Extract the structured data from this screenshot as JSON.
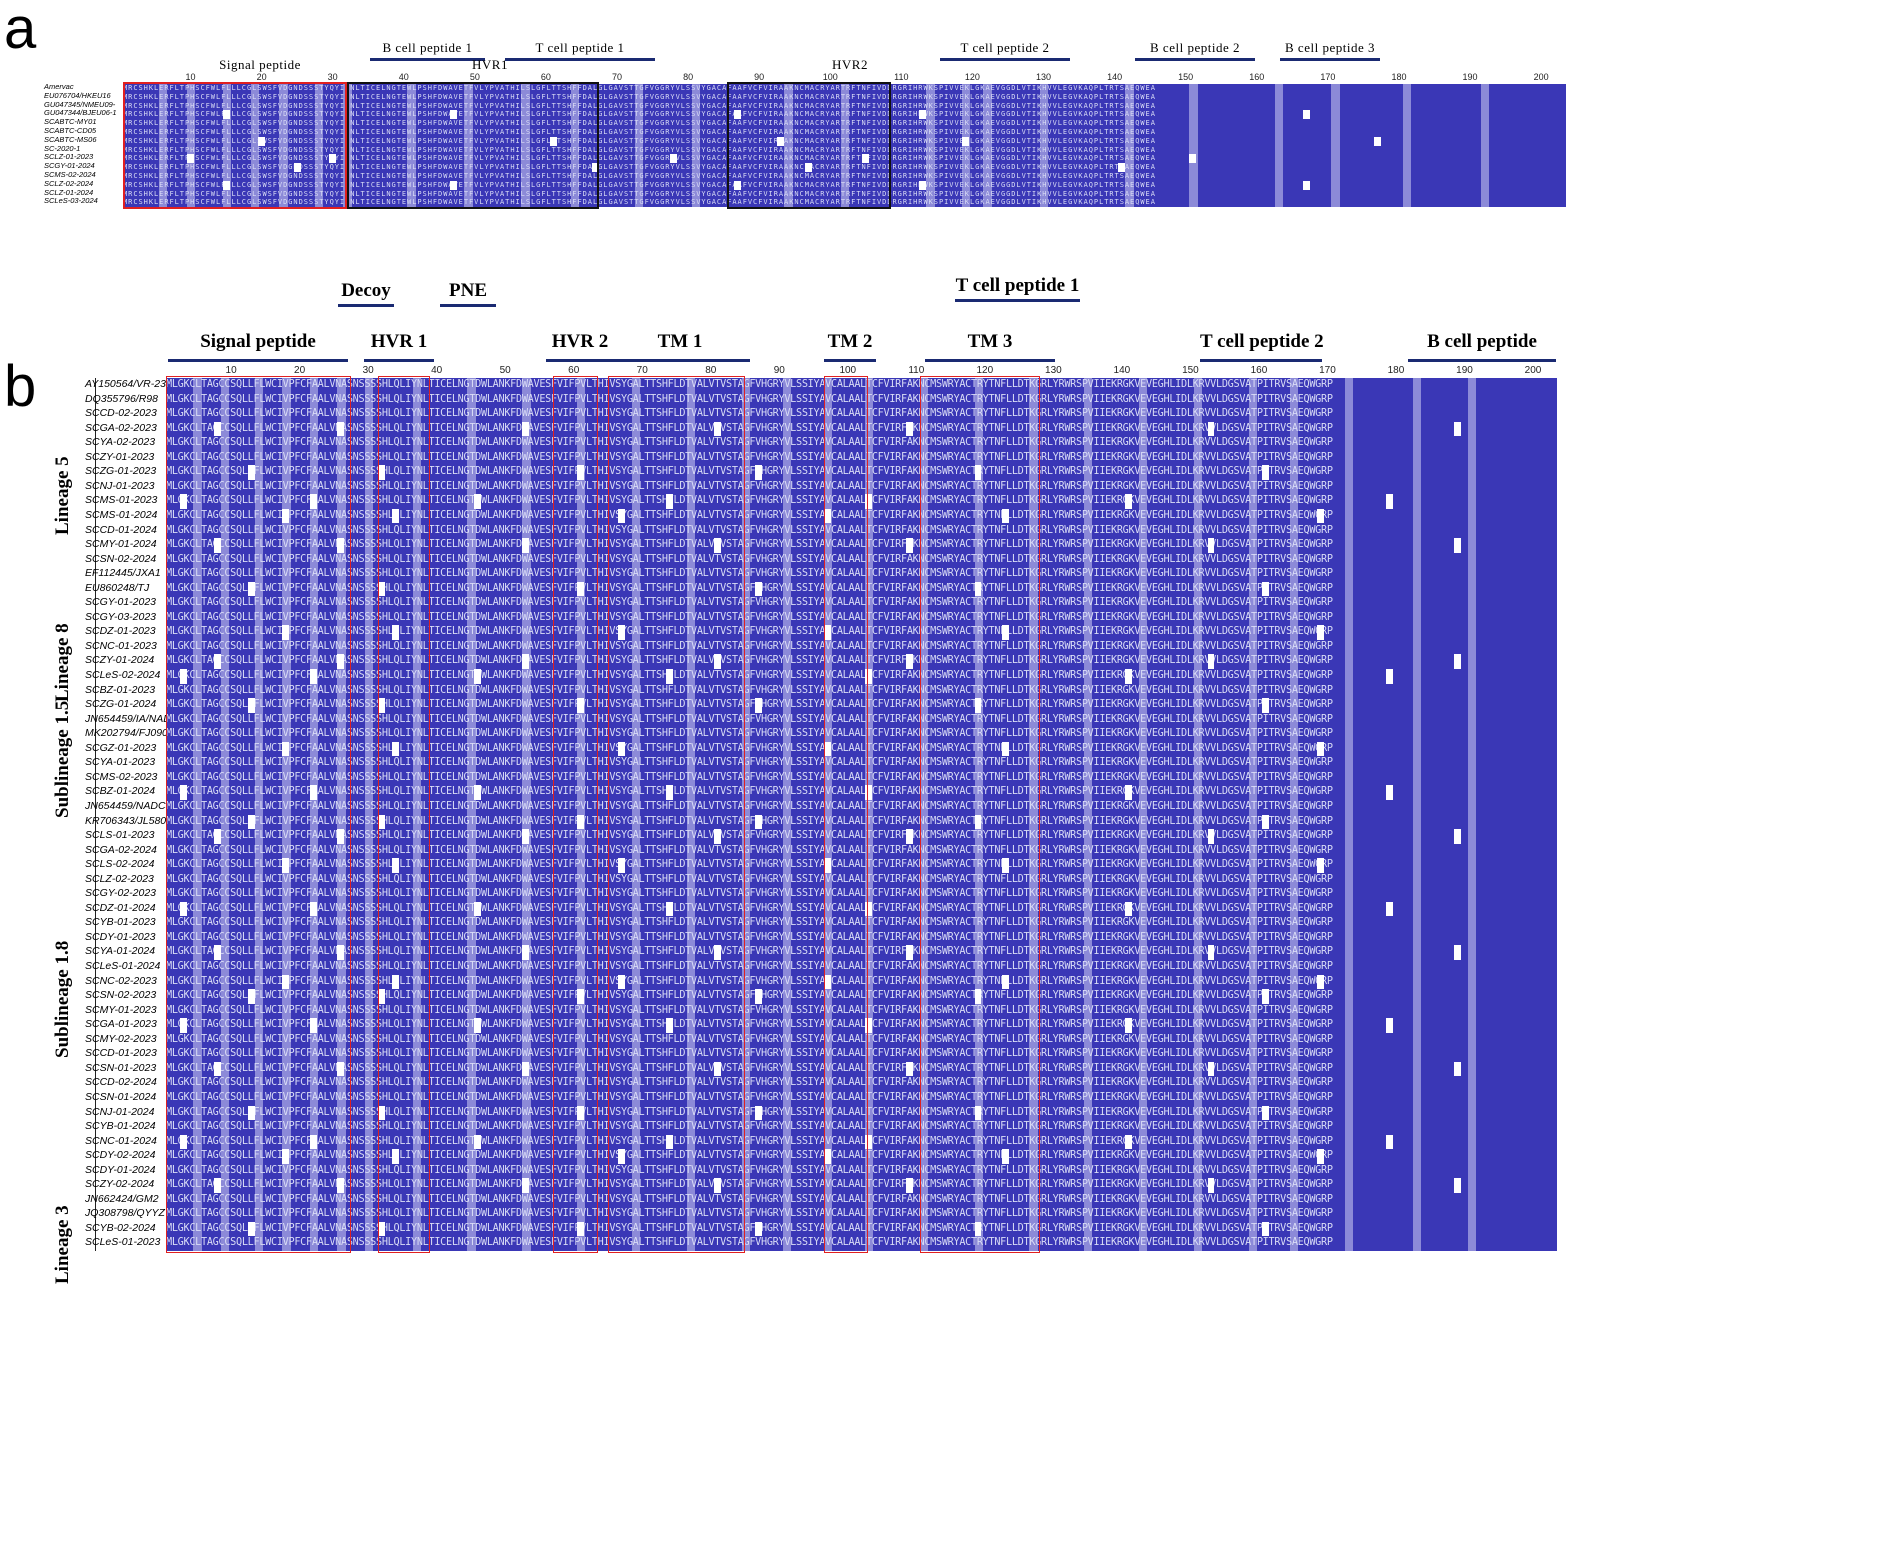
{
  "panel_a": {
    "label": "a",
    "features": [
      {
        "key": "signal",
        "text": "Signal peptide",
        "bar": false
      },
      {
        "key": "bcell1",
        "text": "B cell peptide  1",
        "bar": true
      },
      {
        "key": "tcell1",
        "text": "T cell peptide  1",
        "bar": true
      },
      {
        "key": "hvr1",
        "text": "HVR1",
        "bar": false
      },
      {
        "key": "hvr2",
        "text": "HVR2",
        "bar": false
      },
      {
        "key": "tcell2",
        "text": "T cell peptide  2",
        "bar": true
      },
      {
        "key": "bcell2",
        "text": "B cell peptide  2",
        "bar": true
      },
      {
        "key": "bcell3",
        "text": "B cell peptide  3",
        "bar": true
      }
    ],
    "ruler": [
      "10",
      "20",
      "30",
      "40",
      "50",
      "60",
      "70",
      "80",
      "90",
      "100",
      "110",
      "120",
      "130",
      "140",
      "150",
      "160",
      "170",
      "180",
      "190",
      "200"
    ],
    "sequence": "MRCSHKLERFLTPHSCFWLFLLLCGLSWSFVDGNDSSSTYQYIYNLTICELNGTEWLPSHFDWAVETFVLYPVATHILSLGFLTTSHFFDALGLGAVSTTGFVGGRYVLSSVYGACAFAAFVCFVIRAAKNCMACRYARTRFTNFIVDDRGRIHRWKSPIVVEKLGKAEVGGDLVTIKHVVLEGVKAQPLTRTSAEQWEA",
    "sequences": [
      "Amervac",
      "EU076704/HKEU16",
      "GU047345/NMEU09-",
      "GU047344/BJEU06-1",
      "SCABTC-MY01",
      "SCABTC-CD05",
      "SCABTC-MS06",
      "SC-2020-1",
      "SCLZ-01-2023",
      "SCGY-01-2024",
      "SCMS-02-2024",
      "SCLZ-02-2024",
      "SCLZ-01-2024",
      "SCLeS-03-2024"
    ]
  },
  "panel_b": {
    "label": "b",
    "features": [
      {
        "key": "decoy",
        "text": "Decoy"
      },
      {
        "key": "pne",
        "text": "PNE"
      },
      {
        "key": "tcell1",
        "text": "T cell peptide 1"
      },
      {
        "key": "signal",
        "text": "Signal peptide"
      },
      {
        "key": "hvr1",
        "text": "HVR 1"
      },
      {
        "key": "hvr2",
        "text": "HVR 2"
      },
      {
        "key": "tm1",
        "text": "TM 1"
      },
      {
        "key": "tm2",
        "text": "TM 2"
      },
      {
        "key": "tm3",
        "text": "TM 3"
      },
      {
        "key": "tcell2",
        "text": "T cell peptide 2"
      },
      {
        "key": "bcell",
        "text": "B cell peptide"
      }
    ],
    "ruler": [
      "10",
      "20",
      "30",
      "40",
      "50",
      "60",
      "70",
      "80",
      "90",
      "100",
      "110",
      "120",
      "130",
      "140",
      "150",
      "160",
      "170",
      "180",
      "190",
      "200"
    ],
    "sequence": "MLGKCLTAGCCSQLLFLWCIVPFCFAALVNASNSSSSHLQLIYNLTICELNGTDWLANKFDWAVESFVIFPVLTHIVSYGALTTSHFLDTVALVTVSTAGFVHGRYVLSSIYAVCALAALTCFVIRFAKNCMSWRYACTRYTNFLLDTKGRLYRWRSPVIIEKRGKVEVEGHLIDLKRVVLDGSVATPITRVSAEQWGRP",
    "lineages": [
      {
        "key": "l5",
        "label": "Lineage 5"
      },
      {
        "key": "l8",
        "label": "Lineage 8"
      },
      {
        "key": "s15",
        "label": "Sublineage 1.5"
      },
      {
        "key": "s18",
        "label": "Sublineage 1.8"
      },
      {
        "key": "l3",
        "label": "Lineage 3"
      }
    ],
    "sequences": [
      "AY150564/VR-2332",
      "DQ355796/R98",
      "SCCD-02-2023",
      "SCGA-02-2023",
      "SCYA-02-2023",
      "SCZY-01-2023",
      "SCZG-01-2023",
      "SCNJ-01-2023",
      "SCMS-01-2023",
      "SCMS-01-2024",
      "SCCD-01-2024",
      "SCMY-01-2024",
      "SCSN-02-2024",
      "EF112445/JXA1",
      "EU860248/TJ",
      "SCGY-01-2023",
      "SCGY-03-2023",
      "SCDZ-01-2023",
      "SCNC-01-2023",
      "SCZY-01-2024",
      "SCLeS-02-2024",
      "SCBZ-01-2023",
      "SCZG-01-2024",
      "JN654459/IA/NADC34",
      "MK202794/FJ0908",
      "SCGZ-01-2023",
      "SCYA-01-2023",
      "SCMS-02-2023",
      "SCBZ-01-2024",
      "JN654459/NADC30",
      "KR706343/JL580",
      "SCLS-01-2023",
      "SCGA-02-2024",
      "SCLS-02-2024",
      "SCLZ-02-2023",
      "SCGY-02-2023",
      "SCDZ-01-2024",
      "SCYB-01-2023",
      "SCDY-01-2023",
      "SCYA-01-2024",
      "SCLeS-01-2024",
      "SCNC-02-2023",
      "SCSN-02-2023",
      "SCMY-01-2023",
      "SCGA-01-2023",
      "SCMY-02-2023",
      "SCCD-01-2023",
      "SCSN-01-2023",
      "SCCD-02-2024",
      "SCSN-01-2024",
      "SCNJ-01-2024",
      "SCYB-01-2024",
      "SCNC-01-2024",
      "SCDY-02-2024",
      "SCDY-01-2024",
      "SCZY-02-2024",
      "JN662424/GM2",
      "JQ308798/QYYZ",
      "SCYB-02-2024",
      "SCLeS-01-2023"
    ]
  }
}
